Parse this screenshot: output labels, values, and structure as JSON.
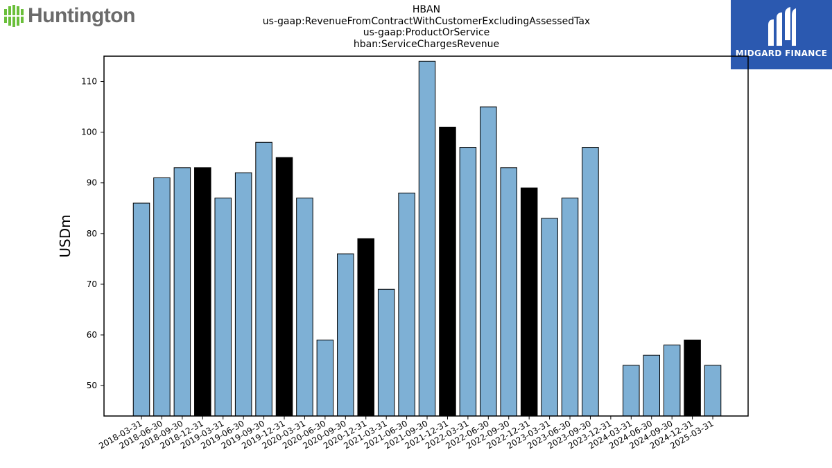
{
  "header": {
    "title_lines": [
      "HBAN",
      "us-gaap:RevenueFromContractWithCustomerExcludingAssessedTax",
      "us-gaap:ProductOrService",
      "hban:ServiceChargesRevenue"
    ]
  },
  "logos": {
    "left": {
      "text": "Huntington",
      "icon": "huntington-bars-icon",
      "color": "#6b6b6b",
      "accent": "#6abf3a"
    },
    "right": {
      "text": "MIDGARD FINANCE",
      "icon": "midgard-m-icon",
      "background": "#2b59b0"
    }
  },
  "chart_data": {
    "type": "bar",
    "ylabel": "USDm",
    "xlabel": "",
    "ylim": [
      44,
      115
    ],
    "yticks": [
      50,
      60,
      70,
      80,
      90,
      100,
      110
    ],
    "grid": false,
    "colors": {
      "quarter": "#7eb0d5",
      "year_end": "#000000"
    },
    "categories": [
      "2018-03-31",
      "2018-06-30",
      "2018-09-30",
      "2018-12-31",
      "2019-03-31",
      "2019-06-30",
      "2019-09-30",
      "2019-12-31",
      "2020-03-31",
      "2020-06-30",
      "2020-09-30",
      "2020-12-31",
      "2021-03-31",
      "2021-06-30",
      "2021-09-30",
      "2021-12-31",
      "2022-03-31",
      "2022-06-30",
      "2022-09-30",
      "2022-12-31",
      "2023-03-31",
      "2023-06-30",
      "2023-09-30",
      "2023-12-31",
      "2024-03-31",
      "2024-06-30",
      "2024-09-30",
      "2024-12-31",
      "2025-03-31"
    ],
    "values": [
      86,
      91,
      93,
      93,
      87,
      92,
      98,
      95,
      87,
      59,
      76,
      79,
      69,
      88,
      114,
      101,
      97,
      105,
      93,
      89,
      83,
      87,
      97,
      null,
      54,
      56,
      58,
      59,
      54
    ]
  }
}
